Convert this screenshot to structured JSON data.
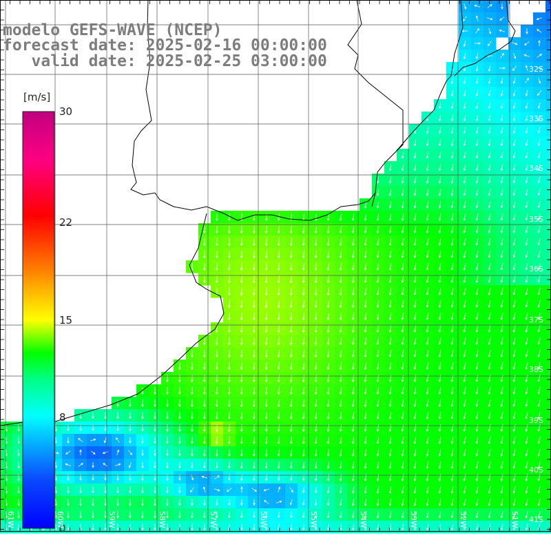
{
  "title": {
    "line1": "modelo GEFS-WAVE (NCEP)",
    "line2": "forecast date: 2025-02-16 00:00:00",
    "line3": "   valid date: 2025-02-25 03:00:00"
  },
  "colorbar": {
    "unit": "[m/s]",
    "ticks": [
      "30",
      "22",
      "15",
      "8",
      "0"
    ],
    "tick_values": [
      30,
      22,
      15,
      8,
      0
    ],
    "range": [
      0,
      30
    ]
  },
  "lat_labels": [
    "32S",
    "33S",
    "34S",
    "35S",
    "36S",
    "37S",
    "38S",
    "39S",
    "40S",
    "41S"
  ],
  "lon_labels": [
    "61W",
    "60W",
    "59W",
    "58W",
    "57W",
    "56W",
    "55W",
    "54W",
    "53W",
    "52W",
    "51W"
  ],
  "colors": {
    "land": "#ffffff",
    "grid": "#555555",
    "coast": "#000000",
    "arrows": "#ffffff",
    "title": "#7d7d7d"
  }
}
